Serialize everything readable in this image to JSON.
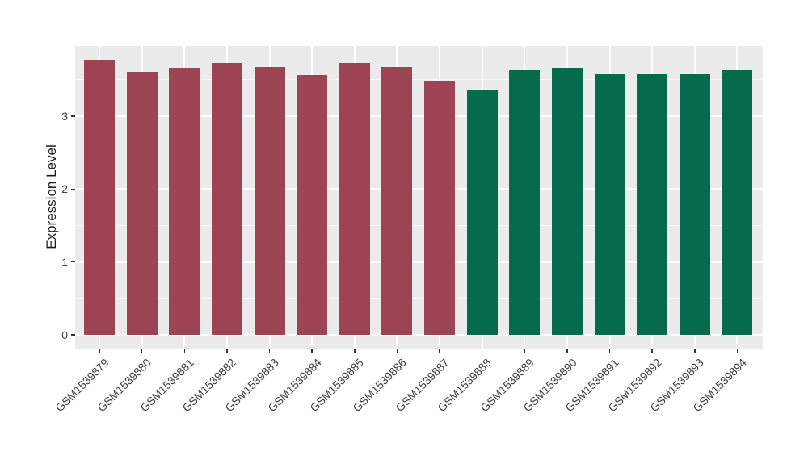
{
  "chart_data": {
    "type": "bar",
    "title": "",
    "xlabel": "",
    "ylabel": "Expression Level",
    "categories": [
      "GSM1539879",
      "GSM1539880",
      "GSM1539881",
      "GSM1539882",
      "GSM1539883",
      "GSM1539884",
      "GSM1539885",
      "GSM1539886",
      "GSM1539887",
      "GSM1539888",
      "GSM1539889",
      "GSM1539890",
      "GSM1539891",
      "GSM1539892",
      "GSM1539893",
      "GSM1539894"
    ],
    "values": [
      3.78,
      3.61,
      3.66,
      3.73,
      3.68,
      3.57,
      3.73,
      3.68,
      3.48,
      3.37,
      3.63,
      3.66,
      3.58,
      3.58,
      3.58,
      3.63
    ],
    "bar_colors": [
      "#9C4453",
      "#9C4453",
      "#9C4453",
      "#9C4453",
      "#9C4453",
      "#9C4453",
      "#9C4453",
      "#9C4453",
      "#9C4453",
      "#056B4A",
      "#056B4A",
      "#056B4A",
      "#056B4A",
      "#056B4A",
      "#056B4A",
      "#056B4A"
    ],
    "palette": {
      "red_group": "#9C4453",
      "green_group": "#056B4A"
    },
    "yticks": [
      0,
      1,
      2,
      3
    ],
    "yticks_minor": [
      0.5,
      1.5,
      2.5,
      3.5
    ],
    "ylim": [
      -0.2,
      3.98
    ],
    "grid": true,
    "legend": "none",
    "colors": {
      "panel_bg": "#EBEBEB",
      "grid_major": "#FFFFFF",
      "grid_minor": "#F7F7F7",
      "tick_mark": "#333333",
      "axis_text": "#404040",
      "axis_title": "#1A1A1A",
      "figure_bg": "#FFFFFF"
    }
  }
}
